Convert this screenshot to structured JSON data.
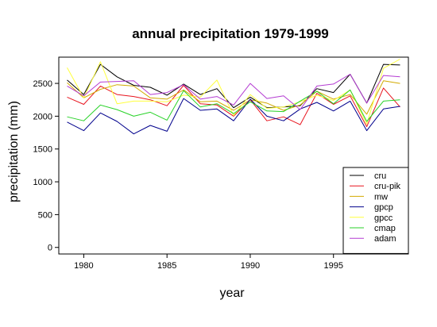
{
  "chart_data": {
    "type": "line",
    "title": "annual precipitation 1979-1999",
    "xlabel": "year",
    "ylabel": "precipitation (mm)",
    "xlim": [
      1978.5,
      1999.5
    ],
    "ylim": [
      -100,
      2900
    ],
    "x_ticks": [
      1980,
      1985,
      1990,
      1995
    ],
    "y_ticks": [
      0,
      500,
      1000,
      1500,
      2000,
      2500
    ],
    "grid": false,
    "legend_position": "bottom-right",
    "x": [
      1979,
      1980,
      1981,
      1982,
      1983,
      1984,
      1985,
      1986,
      1987,
      1988,
      1989,
      1990,
      1991,
      1992,
      1993,
      1994,
      1995,
      1996,
      1997,
      1998,
      1999
    ],
    "series": [
      {
        "name": "cru",
        "color": "#000000",
        "values": [
          2550,
          2330,
          2790,
          2600,
          2470,
          2440,
          2320,
          2490,
          2330,
          2420,
          2130,
          2290,
          2130,
          2140,
          2160,
          2420,
          2360,
          2640,
          2200,
          2790,
          2780
        ]
      },
      {
        "name": "cru-pik",
        "color": "#e8141e",
        "values": [
          2290,
          2180,
          2460,
          2330,
          2300,
          2250,
          2160,
          2470,
          2190,
          2170,
          2000,
          2250,
          1930,
          1990,
          1870,
          2350,
          2180,
          2310,
          1840,
          2430,
          2140
        ]
      },
      {
        "name": "mw",
        "color": "#d2aa00",
        "values": [
          2510,
          2280,
          2410,
          2480,
          2460,
          2280,
          2260,
          2400,
          2220,
          2230,
          2090,
          2250,
          2200,
          2090,
          2170,
          2380,
          2260,
          2330,
          2030,
          2540,
          2500
        ]
      },
      {
        "name": "gpcp",
        "color": "#00008c",
        "values": [
          1910,
          1780,
          2050,
          1920,
          1730,
          1860,
          1770,
          2270,
          2090,
          2110,
          1930,
          2260,
          2000,
          1930,
          2110,
          2210,
          2080,
          2230,
          1780,
          2110,
          2150
        ]
      },
      {
        "name": "gpcc",
        "color": "#ffff3c",
        "values": [
          2740,
          2280,
          2830,
          2190,
          2230,
          2230,
          2220,
          2320,
          2290,
          2550,
          2010,
          2330,
          2120,
          2140,
          2220,
          2320,
          2240,
          2400,
          1880,
          2730,
          2870
        ]
      },
      {
        "name": "cmap",
        "color": "#28d228",
        "values": [
          1990,
          1930,
          2170,
          2100,
          2000,
          2060,
          1940,
          2390,
          2140,
          2190,
          2040,
          2220,
          2080,
          2070,
          2230,
          2380,
          2190,
          2400,
          1920,
          2230,
          2250
        ]
      },
      {
        "name": "adam",
        "color": "#b43cd2",
        "values": [
          2460,
          2310,
          2520,
          2530,
          2540,
          2330,
          2360,
          2480,
          2260,
          2300,
          2170,
          2500,
          2270,
          2310,
          2100,
          2460,
          2490,
          2640,
          2200,
          2620,
          2600
        ]
      }
    ]
  }
}
